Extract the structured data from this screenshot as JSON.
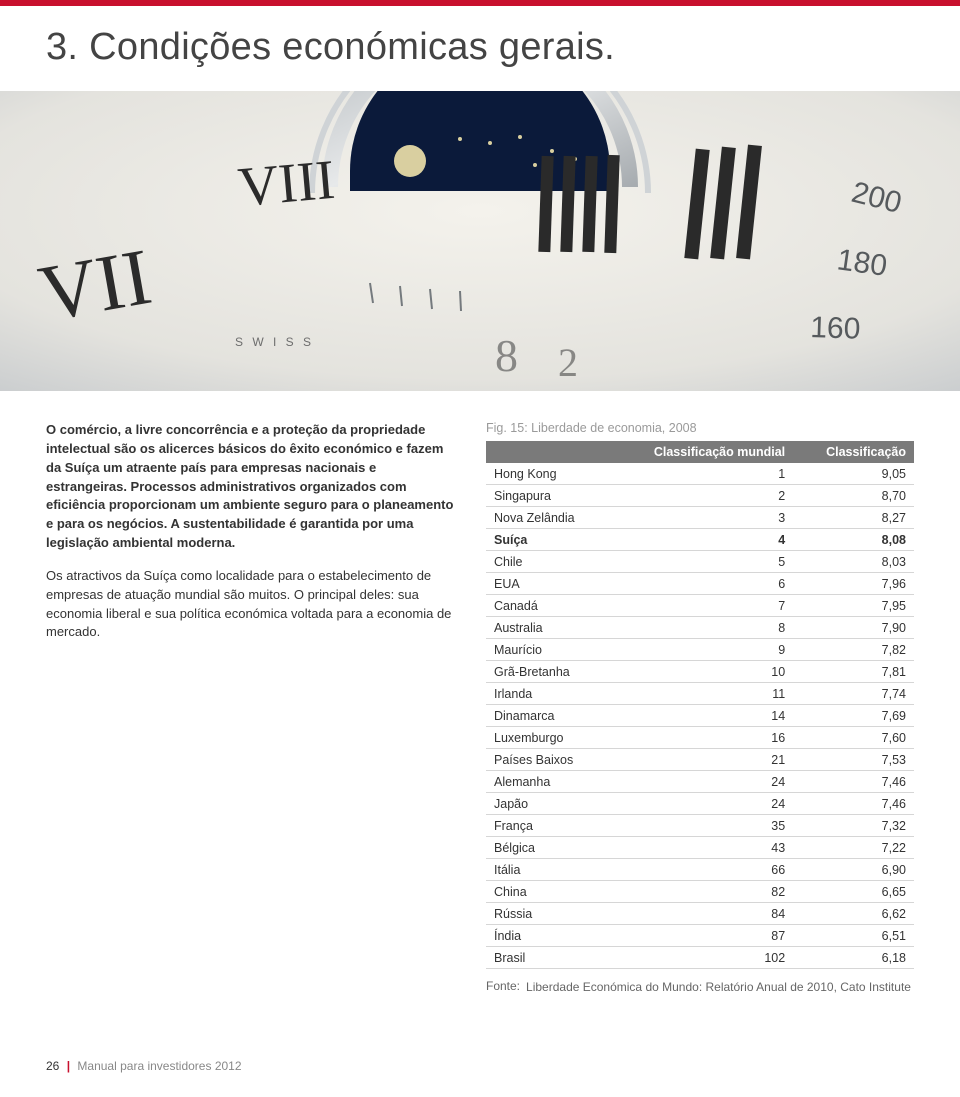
{
  "accent_color": "#c8102e",
  "header_gray": "#7a7a7a",
  "page_title": "3. Condições económicas gerais.",
  "paragraphs": {
    "p1_bold": "O comércio, a livre concorrência e a proteção da propriedade intelectual são os alicerces básicos do êxito económico e fazem da Suíça um atraente país para empresas nacionais e estrangeiras. Processos administrativos organizados com eficiência proporcionam um ambiente seguro para o planeamento e para os negócios. A sustentabilidade é garantida por uma legislação ambiental moderna.",
    "p2": "Os atractivos da Suíça como localidade para o estabelecimento de empresas de atuação mundial são muitos. O principal deles: sua economia liberal e sua política económica voltada para a economia de mercado."
  },
  "figure": {
    "caption": "Fig. 15: Liberdade de economia, 2008",
    "table_headers": [
      "",
      "Classificação mundial",
      "Classificação"
    ],
    "highlight_row_index": 3,
    "rows": [
      [
        "Hong Kong",
        "1",
        "9,05"
      ],
      [
        "Singapura",
        "2",
        "8,70"
      ],
      [
        "Nova Zelândia",
        "3",
        "8,27"
      ],
      [
        "Suíça",
        "4",
        "8,08"
      ],
      [
        "Chile",
        "5",
        "8,03"
      ],
      [
        "EUA",
        "6",
        "7,96"
      ],
      [
        "Canadá",
        "7",
        "7,95"
      ],
      [
        "Australia",
        "8",
        "7,90"
      ],
      [
        "Maurício",
        "9",
        "7,82"
      ],
      [
        "Grã-Bretanha",
        "10",
        "7,81"
      ],
      [
        "Irlanda",
        "11",
        "7,74"
      ],
      [
        "Dinamarca",
        "14",
        "7,69"
      ],
      [
        "Luxemburgo",
        "16",
        "7,60"
      ],
      [
        "Países Baixos",
        "21",
        "7,53"
      ],
      [
        "Alemanha",
        "24",
        "7,46"
      ],
      [
        "Japão",
        "24",
        "7,46"
      ],
      [
        "França",
        "35",
        "7,32"
      ],
      [
        "Bélgica",
        "43",
        "7,22"
      ],
      [
        "Itália",
        "66",
        "6,90"
      ],
      [
        "China",
        "82",
        "6,65"
      ],
      [
        "Rússia",
        "84",
        "6,62"
      ],
      [
        "Índia",
        "87",
        "6,51"
      ],
      [
        "Brasil",
        "102",
        "6,18"
      ]
    ],
    "source_label": "Fonte:",
    "source_text": "Liberdade Económica do Mundo: Relatório Anual de 2010, Cato Institute"
  },
  "footer": {
    "page_number": "26",
    "doc_title": "Manual para investidores 2012"
  }
}
